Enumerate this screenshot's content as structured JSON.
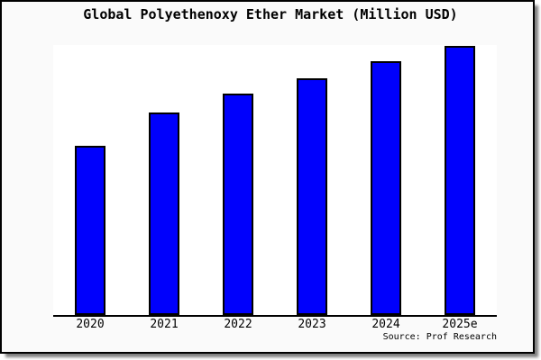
{
  "title": "Global Polyethenoxy Ether Market (Million USD)",
  "source_text": "Source: Prof Research",
  "colors": {
    "bar_fill": "#0000fc",
    "bar_border": "#000000",
    "plot_background": "#ffffff",
    "page_background": "#fafafa",
    "frame_border": "#000000"
  },
  "chart_data": {
    "type": "bar",
    "title": "Global Polyethenoxy Ether Market (Million USD)",
    "categories": [
      "2020",
      "2021",
      "2022",
      "2023",
      "2024",
      "2025e"
    ],
    "values": [
      188,
      225,
      246,
      263,
      282,
      299
    ],
    "value_scale_note": "no y-axis ticks or gridlines shown; values are relative bar heights (tallest bar 2025e = 299 of ylim 300)",
    "xlabel": "",
    "ylabel": "",
    "ylim": [
      0,
      300
    ],
    "grid": false,
    "legend": false,
    "annotation": "Source: Prof Research"
  }
}
